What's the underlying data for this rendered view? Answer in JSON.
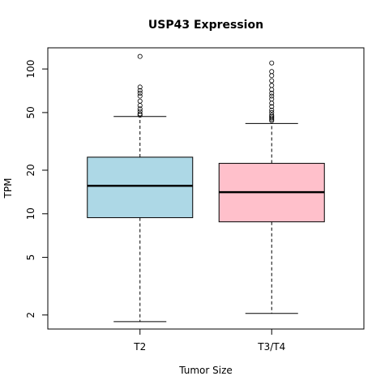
{
  "chart_data": {
    "type": "boxplot",
    "title": "USP43 Expression",
    "xlabel": "Tumor Size",
    "ylabel": "TPM",
    "y_scale": "log",
    "ylim": [
      1.6,
      140
    ],
    "y_ticks": [
      2,
      5,
      10,
      20,
      50,
      100
    ],
    "grid": false,
    "legend": "none",
    "categories": [
      "T2",
      "T3/T4"
    ],
    "series": [
      {
        "category": "T2",
        "color": "#add8e6",
        "whisker_low": 1.8,
        "q1": 9.4,
        "median": 15.6,
        "q3": 24.6,
        "whisker_high": 47,
        "outliers": [
          48,
          49,
          51,
          53,
          56,
          60,
          65,
          68,
          71,
          75,
          122
        ]
      },
      {
        "category": "T3/T4",
        "color": "#ffc0cb",
        "whisker_low": 2.05,
        "q1": 8.8,
        "median": 14.1,
        "q3": 22.3,
        "whisker_high": 42,
        "outliers": [
          44,
          45,
          46,
          47,
          48,
          50,
          52,
          55,
          58,
          62,
          65,
          68,
          72,
          77,
          83,
          90,
          96,
          110
        ]
      }
    ]
  }
}
